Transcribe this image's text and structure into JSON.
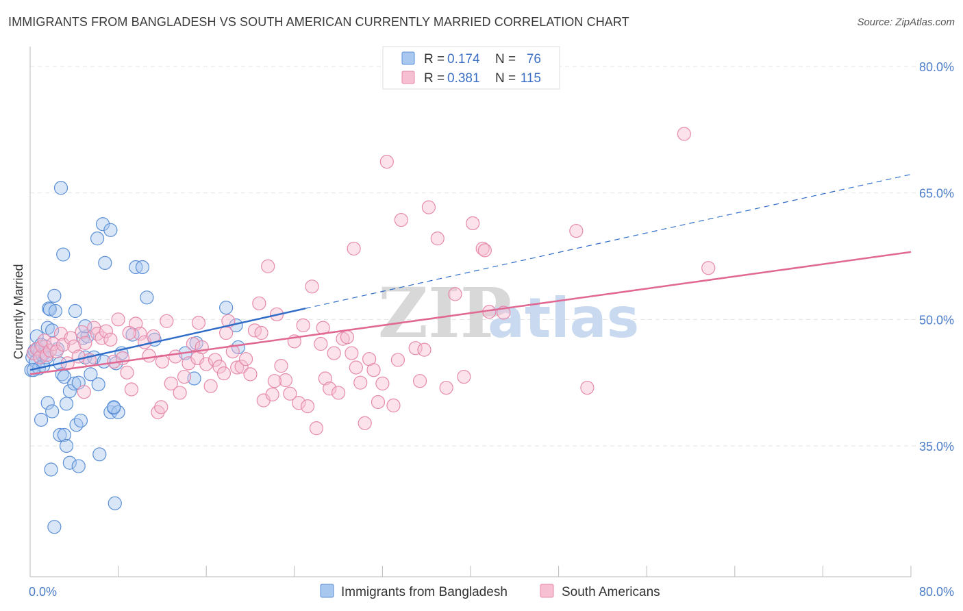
{
  "title": "IMMIGRANTS FROM BANGLADESH VS SOUTH AMERICAN CURRENTLY MARRIED CORRELATION CHART",
  "source": "Source: ZipAtlas.com",
  "watermark": {
    "zip": "ZIP",
    "atlas": "atlas"
  },
  "colors": {
    "blue_fill": "#a9c8ef",
    "blue_stroke": "#5b8fd6",
    "blue_line": "#2e6cc8",
    "pink_fill": "#f7bfd2",
    "pink_stroke": "#e68aab",
    "pink_line": "#e06892",
    "grid": "#e3e3e3",
    "tick_label": "#4a7cc9"
  },
  "legend": {
    "rows": [
      {
        "r_label": "R = ",
        "r_value": "0.174",
        "n_label": "N = ",
        "n_value": "76",
        "color": "blue"
      },
      {
        "r_label": "R = ",
        "r_value": "0.381",
        "n_label": "N = ",
        "n_value": "115",
        "color": "pink"
      }
    ]
  },
  "bottom_legend": [
    "Immigrants from Bangladesh",
    "South Americans"
  ],
  "chart_data": {
    "type": "scatter",
    "ylabel": "Currently Married",
    "xlim": [
      0,
      80
    ],
    "ylim": [
      20,
      80
    ],
    "x_tick_labels": [
      {
        "value": 0,
        "label": "0.0%"
      },
      {
        "value": 80,
        "label": "80.0%"
      }
    ],
    "x_minor_ticks": [
      8,
      16,
      24,
      32,
      40,
      48,
      56,
      64,
      72,
      80
    ],
    "y_tick_labels": [
      {
        "value": 35,
        "label": "35.0%"
      },
      {
        "value": 50,
        "label": "50.0%"
      },
      {
        "value": 65,
        "label": "65.0%"
      },
      {
        "value": 80,
        "label": "80.0%"
      }
    ],
    "series": [
      {
        "name": "Immigrants from Bangladesh",
        "color": "blue",
        "R": 0.174,
        "N": 76,
        "trend": {
          "x0": 0,
          "y0": 44.0,
          "x1": 25.0,
          "y1": 51.3,
          "dashed_to_x": 80,
          "dashed_to_y": 67.2
        },
        "points": [
          [
            0.1,
            44
          ],
          [
            0.2,
            45.5
          ],
          [
            0.3,
            46
          ],
          [
            0.4,
            46.3
          ],
          [
            0.5,
            45
          ],
          [
            0.6,
            48
          ],
          [
            0.7,
            46.5
          ],
          [
            0.8,
            44.2
          ],
          [
            0.9,
            46.2
          ],
          [
            1.0,
            47
          ],
          [
            1.1,
            45.8
          ],
          [
            1.2,
            44.5
          ],
          [
            1.3,
            46
          ],
          [
            1.4,
            46.8
          ],
          [
            1.5,
            45.5
          ],
          [
            1.6,
            49
          ],
          [
            1.7,
            51.3
          ],
          [
            1.8,
            51.2
          ],
          [
            2.0,
            48.7
          ],
          [
            2.2,
            52.8
          ],
          [
            2.3,
            51
          ],
          [
            2.5,
            46.5
          ],
          [
            2.7,
            44.8
          ],
          [
            2.9,
            43.5
          ],
          [
            3.1,
            43.2
          ],
          [
            3.3,
            40
          ],
          [
            3.6,
            41.5
          ],
          [
            4.0,
            42.4
          ],
          [
            4.2,
            37.5
          ],
          [
            4.4,
            42.5
          ],
          [
            4.6,
            38
          ],
          [
            4.8,
            47.8
          ],
          [
            5.0,
            45.5
          ],
          [
            5.2,
            48
          ],
          [
            5.5,
            43.5
          ],
          [
            5.8,
            45.5
          ],
          [
            6.2,
            42.3
          ],
          [
            6.7,
            45
          ],
          [
            7.3,
            39
          ],
          [
            7.6,
            39.5
          ],
          [
            7.8,
            44.8
          ],
          [
            8.0,
            39
          ],
          [
            8.3,
            46
          ],
          [
            9.3,
            48.2
          ],
          [
            9.6,
            56.2
          ],
          [
            10.2,
            56.2
          ],
          [
            10.6,
            52.6
          ],
          [
            11.3,
            47.6
          ],
          [
            14.1,
            46
          ],
          [
            14.9,
            43
          ],
          [
            15.1,
            47.2
          ],
          [
            17.8,
            51.4
          ],
          [
            18.7,
            49.3
          ],
          [
            18.9,
            46.7
          ],
          [
            2.8,
            65.6
          ],
          [
            3.0,
            57.7
          ],
          [
            6.1,
            59.6
          ],
          [
            6.6,
            61.3
          ],
          [
            7.3,
            60.6
          ],
          [
            6.8,
            56.7
          ],
          [
            1.6,
            40.1
          ],
          [
            1.0,
            38.1
          ],
          [
            2.0,
            39.1
          ],
          [
            2.7,
            36.3
          ],
          [
            3.1,
            36.3
          ],
          [
            3.3,
            35
          ],
          [
            3.6,
            33
          ],
          [
            4.4,
            32.6
          ],
          [
            1.9,
            32.2
          ],
          [
            6.3,
            34
          ],
          [
            7.7,
            28.2
          ],
          [
            2.2,
            25.4
          ],
          [
            7.6,
            39.6
          ],
          [
            5.0,
            49.2
          ],
          [
            4.1,
            51
          ],
          [
            0.3,
            44
          ]
        ]
      },
      {
        "name": "South Americans",
        "color": "pink",
        "R": 0.381,
        "N": 115,
        "trend": {
          "x0": 0,
          "y0": 43.5,
          "x1": 80,
          "y1": 58.0
        },
        "points": [
          [
            0.3,
            46
          ],
          [
            0.6,
            46.5
          ],
          [
            0.9,
            45.5
          ],
          [
            1.1,
            46.8
          ],
          [
            1.3,
            47.5
          ],
          [
            1.5,
            45.8
          ],
          [
            1.8,
            46.3
          ],
          [
            2.1,
            47.1
          ],
          [
            2.4,
            46.2
          ],
          [
            2.8,
            48.3
          ],
          [
            3.0,
            47
          ],
          [
            3.4,
            44.8
          ],
          [
            3.7,
            47.8
          ],
          [
            4.0,
            46.8
          ],
          [
            4.4,
            45.6
          ],
          [
            4.7,
            48.5
          ],
          [
            5.0,
            47.2
          ],
          [
            5.4,
            45.2
          ],
          [
            5.8,
            49
          ],
          [
            6.1,
            48.3
          ],
          [
            6.5,
            47.8
          ],
          [
            6.9,
            48.6
          ],
          [
            7.3,
            47.6
          ],
          [
            7.6,
            45
          ],
          [
            8.0,
            50
          ],
          [
            8.4,
            45.4
          ],
          [
            8.8,
            43.7
          ],
          [
            9.2,
            41.7
          ],
          [
            9.6,
            49.5
          ],
          [
            10.0,
            48.3
          ],
          [
            10.4,
            47.3
          ],
          [
            10.8,
            45.7
          ],
          [
            11.2,
            48
          ],
          [
            11.6,
            39
          ],
          [
            12.0,
            45
          ],
          [
            12.4,
            49.8
          ],
          [
            12.8,
            42.4
          ],
          [
            13.2,
            45.6
          ],
          [
            13.6,
            41.3
          ],
          [
            14.0,
            43.2
          ],
          [
            14.4,
            44.8
          ],
          [
            14.8,
            47.1
          ],
          [
            15.2,
            45.4
          ],
          [
            15.6,
            46.7
          ],
          [
            16.0,
            44.7
          ],
          [
            16.4,
            42.1
          ],
          [
            16.8,
            45.2
          ],
          [
            17.2,
            44.4
          ],
          [
            17.6,
            43.6
          ],
          [
            18.0,
            49.8
          ],
          [
            18.4,
            46.2
          ],
          [
            18.8,
            44.3
          ],
          [
            19.2,
            44.4
          ],
          [
            19.6,
            45.3
          ],
          [
            20.0,
            43.5
          ],
          [
            20.4,
            48.7
          ],
          [
            20.8,
            51.9
          ],
          [
            21.2,
            40.4
          ],
          [
            21.6,
            56.3
          ],
          [
            22.0,
            41.1
          ],
          [
            22.4,
            50.6
          ],
          [
            22.8,
            44.5
          ],
          [
            23.2,
            42.8
          ],
          [
            23.6,
            41.2
          ],
          [
            24.0,
            47.4
          ],
          [
            24.4,
            40.1
          ],
          [
            24.8,
            49.3
          ],
          [
            25.2,
            39.7
          ],
          [
            25.6,
            53.9
          ],
          [
            26.0,
            37.1
          ],
          [
            26.4,
            47.1
          ],
          [
            26.8,
            43
          ],
          [
            27.2,
            41.8
          ],
          [
            27.6,
            46
          ],
          [
            28.0,
            41.3
          ],
          [
            28.4,
            47.7
          ],
          [
            28.8,
            47.9
          ],
          [
            29.2,
            46
          ],
          [
            29.6,
            44.3
          ],
          [
            30.0,
            42.5
          ],
          [
            30.4,
            37.7
          ],
          [
            30.8,
            45.3
          ],
          [
            31.2,
            44
          ],
          [
            31.6,
            40.2
          ],
          [
            32.0,
            42.4
          ],
          [
            32.4,
            68.7
          ],
          [
            33.0,
            39.8
          ],
          [
            33.4,
            45.2
          ],
          [
            33.7,
            61.8
          ],
          [
            35.0,
            46.6
          ],
          [
            35.4,
            42.7
          ],
          [
            35.8,
            46.4
          ],
          [
            36.2,
            63.3
          ],
          [
            37.0,
            59.6
          ],
          [
            37.8,
            41.9
          ],
          [
            38.6,
            53
          ],
          [
            39.4,
            43.2
          ],
          [
            40.2,
            61.4
          ],
          [
            41.1,
            58.4
          ],
          [
            41.7,
            50.9
          ],
          [
            43.0,
            50.8
          ],
          [
            49.6,
            60.5
          ],
          [
            50.6,
            41.9
          ],
          [
            59.4,
            72
          ],
          [
            61.6,
            56.1
          ],
          [
            21.0,
            48.4
          ],
          [
            26.6,
            49
          ],
          [
            11.9,
            39.6
          ],
          [
            17.8,
            48.4
          ],
          [
            15.3,
            49.6
          ],
          [
            9.0,
            48.4
          ],
          [
            22.2,
            42.7
          ],
          [
            29.4,
            58.4
          ],
          [
            41.3,
            58.2
          ],
          [
            4.9,
            41.4
          ]
        ]
      }
    ]
  }
}
